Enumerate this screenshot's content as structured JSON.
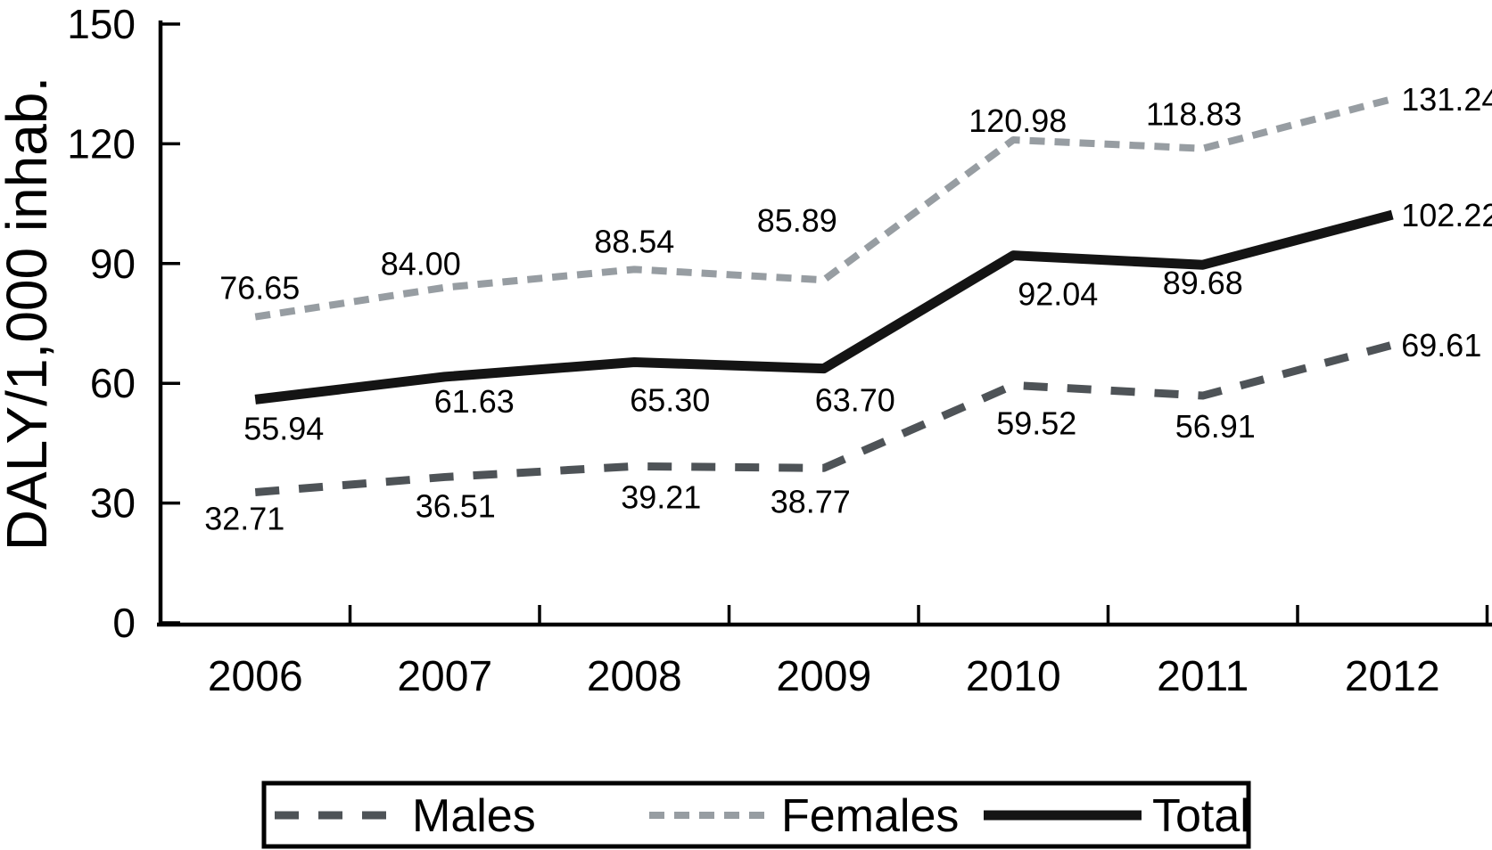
{
  "chart_data": {
    "type": "line",
    "title": "",
    "xlabel": "",
    "ylabel": "DALY/1,000 inhab.",
    "categories": [
      "2006",
      "2007",
      "2008",
      "2009",
      "2010",
      "2011",
      "2012"
    ],
    "ylim": [
      0,
      150
    ],
    "yticks": [
      0,
      30,
      60,
      90,
      120,
      150
    ],
    "ytick_labels": [
      "0",
      "30",
      "60",
      "90",
      "120",
      "150"
    ],
    "grid": false,
    "legend_position": "bottom",
    "series": [
      {
        "name": "Females",
        "values": [
          76.65,
          84.0,
          88.54,
          85.89,
          120.98,
          118.83,
          131.24
        ],
        "point_labels": [
          "76.65",
          "84.00",
          "88.54",
          "85.89",
          "120.98",
          "118.83",
          "131.24"
        ],
        "color": "#979da2",
        "dash_style": "short-dash",
        "line_width": 8
      },
      {
        "name": "Total",
        "values": [
          55.94,
          61.63,
          65.3,
          63.7,
          92.04,
          89.68,
          102.22
        ],
        "point_labels": [
          "55.94",
          "61.63",
          "65.30",
          "63.70",
          "92.04",
          "89.68",
          "102.22"
        ],
        "color": "#141414",
        "dash_style": "solid",
        "line_width": 11
      },
      {
        "name": "Males",
        "values": [
          32.71,
          36.51,
          39.21,
          38.77,
          59.52,
          56.91,
          69.61
        ],
        "point_labels": [
          "32.71",
          "36.51",
          "39.21",
          "38.77",
          "59.52",
          "56.91",
          "69.61"
        ],
        "color": "#4e5357",
        "dash_style": "long-dash",
        "line_width": 9
      }
    ],
    "legend": {
      "items": [
        {
          "label": "Males"
        },
        {
          "label": "Females"
        },
        {
          "label": "Total"
        }
      ]
    }
  },
  "colors": {
    "axis": "#000000",
    "text": "#000000",
    "background": "#ffffff",
    "legend_border": "#000000"
  }
}
